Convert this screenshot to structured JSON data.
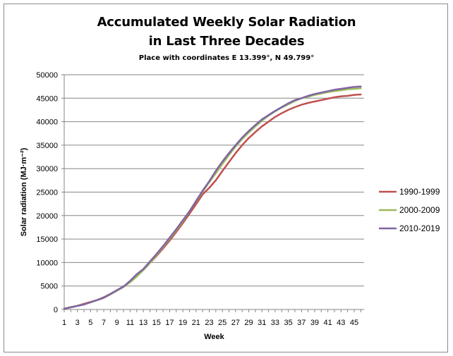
{
  "chart_data": {
    "type": "line",
    "title_line1": "Accumulated Weekly Solar Radiation",
    "title_line2": "in Last Three Decades",
    "subtitle": "Place with coordinates  E 13.399°, N 49.799°",
    "xlabel": "Week",
    "ylabel": "Solar radiation  (MJ·m⁻²)",
    "x": [
      1,
      2,
      3,
      4,
      5,
      6,
      7,
      8,
      9,
      10,
      11,
      12,
      13,
      14,
      15,
      16,
      17,
      18,
      19,
      20,
      21,
      22,
      23,
      24,
      25,
      26,
      27,
      28,
      29,
      30,
      31,
      32,
      33,
      34,
      35,
      36,
      37,
      38,
      39,
      40,
      41,
      42,
      43,
      44,
      45,
      46
    ],
    "x_tick_labels": [
      "1",
      "3",
      "5",
      "7",
      "9",
      "11",
      "13",
      "15",
      "17",
      "19",
      "21",
      "23",
      "25",
      "27",
      "29",
      "31",
      "33",
      "35",
      "37",
      "39",
      "41",
      "43",
      "45"
    ],
    "ylim": [
      0,
      50000
    ],
    "y_ticks": [
      0,
      5000,
      10000,
      15000,
      20000,
      25000,
      30000,
      35000,
      40000,
      45000,
      50000
    ],
    "grid": true,
    "legend_position": "right",
    "series": [
      {
        "name": "1990-1999",
        "color": "#c0504d",
        "values": [
          200,
          500,
          800,
          1200,
          1600,
          2000,
          2600,
          3300,
          4100,
          4900,
          5900,
          7100,
          8400,
          9900,
          11400,
          13000,
          14700,
          16500,
          18400,
          20400,
          22400,
          24500,
          25900,
          27500,
          29500,
          31400,
          33300,
          35000,
          36500,
          37800,
          39000,
          40000,
          41000,
          41800,
          42500,
          43100,
          43600,
          44000,
          44300,
          44600,
          44900,
          45200,
          45400,
          45500,
          45700,
          45800
        ]
      },
      {
        "name": "2000-2009",
        "color": "#9bbb59",
        "values": [
          200,
          450,
          800,
          1100,
          1500,
          2000,
          2500,
          3200,
          4000,
          4800,
          5800,
          7000,
          8400,
          9900,
          11600,
          13300,
          15100,
          16900,
          18800,
          20900,
          23000,
          25100,
          27100,
          29000,
          31000,
          32900,
          34700,
          36300,
          37700,
          39000,
          40200,
          41300,
          42200,
          43000,
          43700,
          44400,
          45000,
          45300,
          45700,
          46000,
          46300,
          46500,
          46700,
          46900,
          47000,
          47100
        ]
      },
      {
        "name": "2010-2019",
        "color": "#8064a2",
        "values": [
          150,
          450,
          750,
          1050,
          1550,
          2000,
          2500,
          3300,
          4100,
          4900,
          6100,
          7500,
          8600,
          10200,
          11800,
          13500,
          15300,
          17100,
          19000,
          20900,
          23100,
          25300,
          27300,
          29500,
          31500,
          33300,
          35000,
          36600,
          38000,
          39300,
          40500,
          41400,
          42300,
          43100,
          43900,
          44600,
          45000,
          45500,
          45900,
          46200,
          46500,
          46800,
          47000,
          47200,
          47400,
          47500
        ]
      }
    ]
  }
}
